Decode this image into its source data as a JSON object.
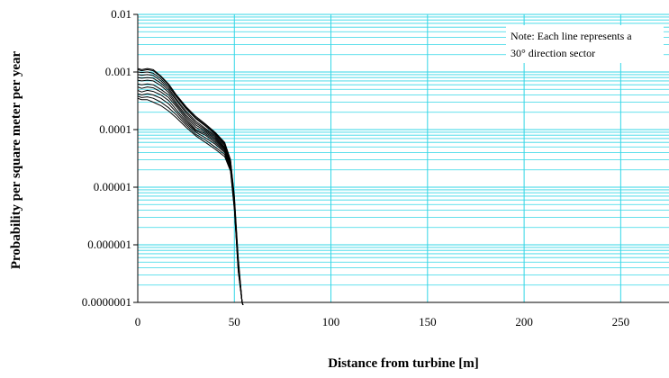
{
  "chart_data": {
    "type": "line",
    "title": "",
    "xlabel": "Distance from turbine [m]",
    "ylabel": "Probability per square meter per year",
    "y_scale": "log",
    "xlim": [
      0,
      275
    ],
    "ylim": [
      1e-07,
      0.01
    ],
    "x_ticks": [
      0,
      50,
      100,
      150,
      200,
      250
    ],
    "x_tick_labels": [
      "0",
      "50",
      "100",
      "150",
      "200",
      "250"
    ],
    "y_ticks": [
      1e-07,
      1e-06,
      1e-05,
      0.0001,
      0.001,
      0.01
    ],
    "y_tick_labels": [
      "0.0000001",
      "0.000001",
      "0.00001",
      "0.0001",
      "0.001",
      "0.01"
    ],
    "grid": true,
    "grid_color": "#33d6e6",
    "line_color": "#000000",
    "annotation": "Note: Each line represents a 30° direction sector",
    "annotation_lines": [
      "Note: Each line represents a",
      "30° direction sector"
    ],
    "series": [
      {
        "x": [
          0,
          2,
          5,
          8,
          12,
          16,
          20,
          25,
          30,
          35,
          40,
          45,
          48,
          50,
          52,
          54,
          55
        ],
        "y": [
          0.00115,
          0.0011,
          0.00115,
          0.0011,
          0.00085,
          0.00062,
          0.0004,
          0.00025,
          0.00017,
          0.000125,
          9e-05,
          6e-05,
          3e-05,
          7e-06,
          6e-07,
          1e-07,
          8e-08
        ]
      },
      {
        "x": [
          0,
          2,
          5,
          8,
          12,
          16,
          20,
          25,
          30,
          35,
          40,
          45,
          48,
          50,
          52,
          54,
          55
        ],
        "y": [
          0.0011,
          0.00105,
          0.0011,
          0.00105,
          0.00082,
          0.0006,
          0.00039,
          0.00024,
          0.00016,
          0.00012,
          8.7e-05,
          5.8e-05,
          3e-05,
          6.5e-06,
          5e-07,
          1e-07,
          8e-08
        ]
      },
      {
        "x": [
          0,
          2,
          5,
          8,
          12,
          16,
          20,
          25,
          30,
          35,
          40,
          45,
          48,
          50,
          52,
          54,
          55
        ],
        "y": [
          0.001,
          0.00098,
          0.001,
          0.00095,
          0.00076,
          0.00056,
          0.00037,
          0.00023,
          0.000155,
          0.000115,
          8.4e-05,
          5.6e-05,
          2.8e-05,
          6e-06,
          5e-07,
          1e-07,
          8e-08
        ]
      },
      {
        "x": [
          0,
          2,
          5,
          8,
          12,
          16,
          20,
          25,
          30,
          35,
          40,
          45,
          48,
          50,
          52,
          54,
          55
        ],
        "y": [
          0.0009,
          0.00088,
          0.0009,
          0.00087,
          0.0007,
          0.00052,
          0.00034,
          0.00021,
          0.00014,
          0.000105,
          8e-05,
          5.3e-05,
          2.7e-05,
          5.8e-06,
          5e-07,
          1e-07,
          8e-08
        ]
      },
      {
        "x": [
          0,
          2,
          5,
          8,
          12,
          16,
          20,
          25,
          30,
          35,
          40,
          45,
          48,
          50,
          52,
          54,
          55
        ],
        "y": [
          0.0008,
          0.00078,
          0.0008,
          0.00078,
          0.00064,
          0.00048,
          0.00032,
          0.000195,
          0.00013,
          0.0001,
          7.6e-05,
          5e-05,
          2.6e-05,
          5.5e-06,
          4.5e-07,
          1e-07,
          8e-08
        ]
      },
      {
        "x": [
          0,
          2,
          5,
          8,
          12,
          16,
          20,
          25,
          30,
          35,
          40,
          45,
          48,
          50,
          52,
          54,
          55
        ],
        "y": [
          0.00072,
          0.0007,
          0.00072,
          0.0007,
          0.00058,
          0.00044,
          0.00029,
          0.000178,
          0.00012,
          9.5e-05,
          7.2e-05,
          4.8e-05,
          2.5e-05,
          5.2e-06,
          4.5e-07,
          1e-07,
          8e-08
        ]
      },
      {
        "x": [
          0,
          2,
          5,
          8,
          12,
          16,
          20,
          25,
          30,
          35,
          40,
          45,
          48,
          50,
          52,
          54,
          55
        ],
        "y": [
          0.00062,
          0.0006,
          0.00062,
          0.0006,
          0.0005,
          0.0004,
          0.00027,
          0.000165,
          0.00011,
          9e-05,
          6.8e-05,
          4.6e-05,
          2.4e-05,
          5e-06,
          4e-07,
          1e-07,
          8e-08
        ]
      },
      {
        "x": [
          0,
          2,
          5,
          8,
          12,
          16,
          20,
          25,
          30,
          35,
          40,
          45,
          48,
          50,
          52,
          54,
          55
        ],
        "y": [
          0.00055,
          0.00052,
          0.00055,
          0.00053,
          0.00045,
          0.00036,
          0.00025,
          0.000152,
          0.0001,
          8.5e-05,
          6.4e-05,
          4.4e-05,
          2.3e-05,
          4.8e-06,
          4e-07,
          1e-07,
          8e-08
        ]
      },
      {
        "x": [
          0,
          2,
          5,
          8,
          12,
          16,
          20,
          25,
          30,
          35,
          40,
          45,
          48,
          50,
          52,
          54,
          55
        ],
        "y": [
          0.00048,
          0.00045,
          0.00048,
          0.00046,
          0.0004,
          0.00032,
          0.00022,
          0.00014,
          9.5e-05,
          8e-05,
          6e-05,
          4.2e-05,
          2.2e-05,
          4.6e-06,
          4e-07,
          1e-07,
          8e-08
        ]
      },
      {
        "x": [
          0,
          2,
          5,
          8,
          12,
          16,
          20,
          25,
          30,
          35,
          40,
          45,
          48,
          50,
          52,
          54,
          55
        ],
        "y": [
          0.00042,
          0.0004,
          0.00042,
          0.0004,
          0.00035,
          0.00028,
          0.0002,
          0.00013,
          9e-05,
          7.2e-05,
          5.6e-05,
          4e-05,
          2.1e-05,
          4.5e-06,
          4e-07,
          1e-07,
          8e-08
        ]
      },
      {
        "x": [
          0,
          2,
          5,
          8,
          12,
          16,
          20,
          25,
          30,
          35,
          40,
          45,
          48,
          50,
          52,
          54,
          55
        ],
        "y": [
          0.00038,
          0.00036,
          0.00037,
          0.00035,
          0.0003,
          0.00024,
          0.00018,
          0.00012,
          8.3e-05,
          6.6e-05,
          5e-05,
          3.7e-05,
          2e-05,
          4.3e-06,
          3.5e-07,
          1e-07,
          8e-08
        ]
      },
      {
        "x": [
          0,
          2,
          5,
          8,
          12,
          16,
          20,
          25,
          30,
          35,
          40,
          45,
          48,
          50,
          52,
          54,
          55
        ],
        "y": [
          0.00035,
          0.00033,
          0.00033,
          0.0003,
          0.00026,
          0.00021,
          0.00016,
          0.00011,
          7.8e-05,
          6e-05,
          4.6e-05,
          3.4e-05,
          1.9e-05,
          4e-06,
          3.5e-07,
          1e-07,
          8e-08
        ]
      }
    ]
  }
}
